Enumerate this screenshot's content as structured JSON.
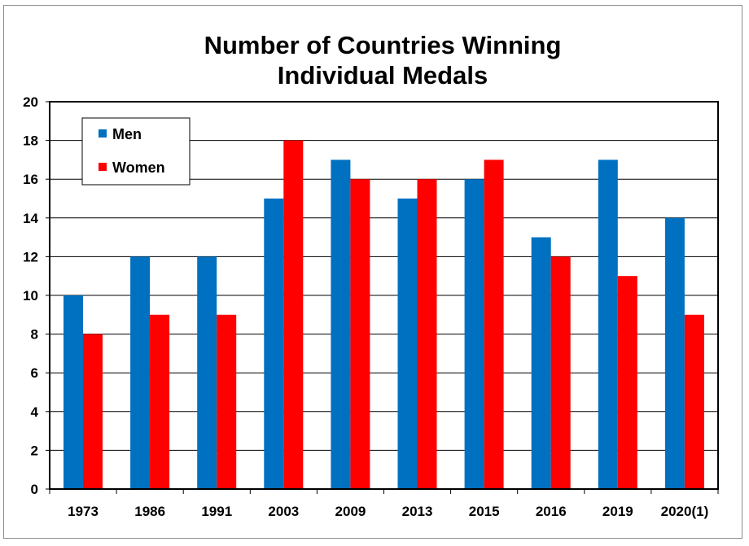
{
  "chart_data": {
    "type": "bar",
    "title": "Number of Countries Winning\nIndividual Medals",
    "categories": [
      "1973",
      "1986",
      "1991",
      "2003",
      "2009",
      "2013",
      "2015",
      "2016",
      "2019",
      "2020(1)"
    ],
    "series": [
      {
        "name": "Men",
        "color": "#0070c0",
        "values": [
          10,
          12,
          12,
          15,
          17,
          15,
          16,
          13,
          17,
          14
        ]
      },
      {
        "name": "Women",
        "color": "#ff0000",
        "values": [
          8,
          9,
          9,
          18,
          16,
          16,
          17,
          12,
          11,
          9
        ]
      }
    ],
    "ylim": [
      0,
      20
    ],
    "ytick_step": 2,
    "yticks": [
      "0",
      "2",
      "4",
      "6",
      "8",
      "10",
      "12",
      "14",
      "16",
      "18",
      "20"
    ],
    "grid": true,
    "legend_position": "top-left",
    "xlabel": "",
    "ylabel": ""
  }
}
